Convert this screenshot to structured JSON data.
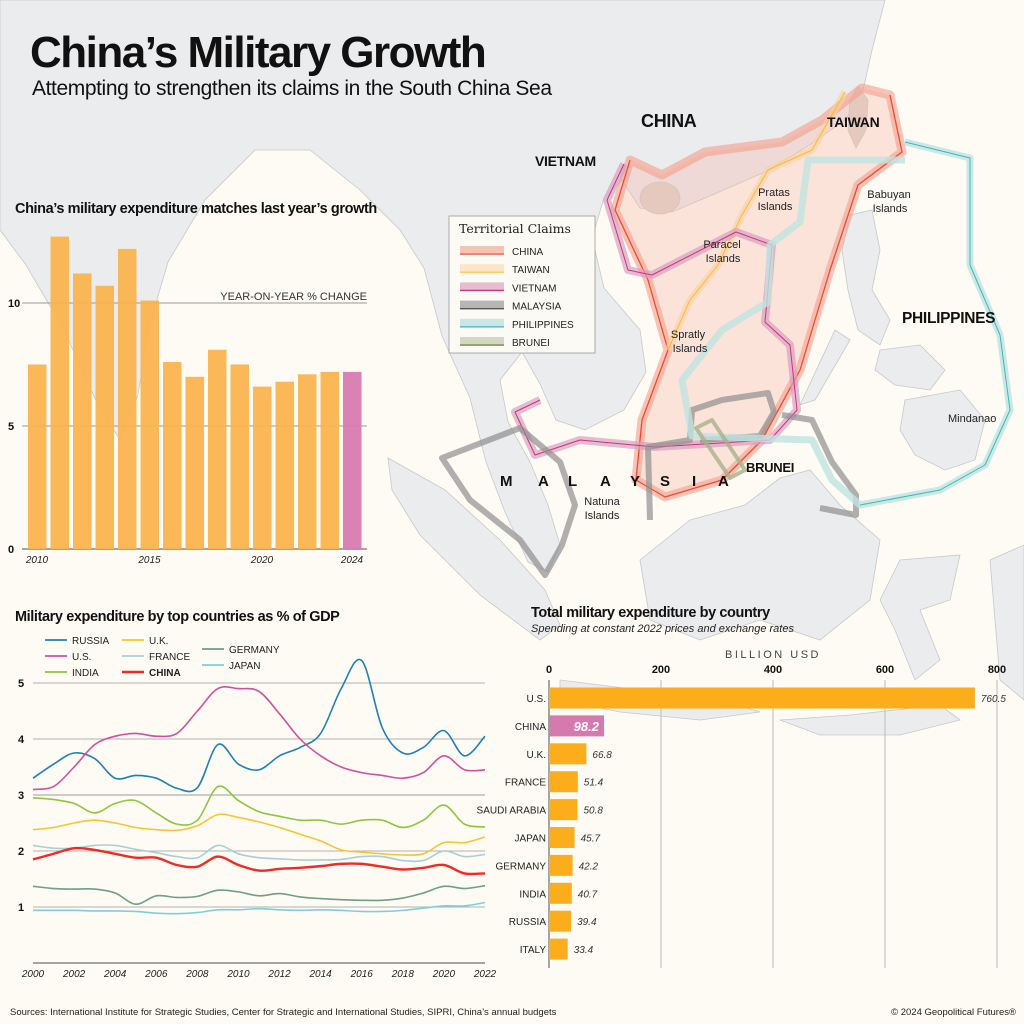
{
  "header": {
    "title": "China’s Military Growth",
    "subtitle": "Attempting to strengthen its claims in the South China Sea"
  },
  "map": {
    "labels": {
      "china": "CHINA",
      "taiwan": "TAIWAN",
      "vietnam": "VIETNAM",
      "philippines": "PHILIPPINES",
      "malaysia": [
        "M",
        "A",
        "L",
        "A",
        "Y",
        "S",
        "I",
        "A"
      ],
      "brunei": "BRUNEI",
      "pratas": [
        "Pratas",
        "Islands"
      ],
      "babuyan": [
        "Babuyan",
        "Islands"
      ],
      "paracel": [
        "Paracel",
        "Islands"
      ],
      "spratly": [
        "Spratly",
        "Islands"
      ],
      "natuna": [
        "Natuna",
        "Islands"
      ],
      "mindanao": "Mindanao"
    },
    "legend": {
      "title": "Territorial Claims",
      "items": [
        {
          "label": "CHINA",
          "color": "#ee5a45",
          "fill": "#f6b8a9"
        },
        {
          "label": "TAIWAN",
          "color": "#f9c04f",
          "fill": "#fde2bb"
        },
        {
          "label": "VIETNAM",
          "color": "#c9357f",
          "fill": "#e2b2c9"
        },
        {
          "label": "MALAYSIA",
          "color": "#555555",
          "fill": "#a9a9a9"
        },
        {
          "label": "PHILIPPINES",
          "color": "#3bb7bb",
          "fill": "#bfe3e1"
        },
        {
          "label": "BRUNEI",
          "color": "#6d8a3e",
          "fill": "#cfcfbc"
        }
      ]
    }
  },
  "chart_data": [
    {
      "type": "bar",
      "title": "China’s military expenditure matches last year’s growth",
      "ylabel": "YEAR-ON-YEAR % CHANGE",
      "categories": [
        "2010",
        "2011",
        "2012",
        "2013",
        "2014",
        "2015",
        "2016",
        "2017",
        "2018",
        "2019",
        "2020",
        "2021",
        "2022",
        "2023",
        "2024"
      ],
      "values": [
        7.5,
        12.7,
        11.2,
        10.7,
        12.2,
        10.1,
        7.6,
        7.0,
        8.1,
        7.5,
        6.6,
        6.8,
        7.1,
        7.2,
        7.2
      ],
      "highlight": "2024",
      "yticks": [
        "0",
        "5",
        "10"
      ],
      "xtick_labels": [
        "2010",
        "2015",
        "2020",
        "2024"
      ],
      "ylim": [
        0,
        13
      ],
      "grid": true,
      "colors": {
        "bar": "#fbb34c",
        "highlight": "#d57aae"
      }
    },
    {
      "type": "line",
      "title": "Military expenditure by top countries as % of GDP",
      "x": [
        2000,
        2001,
        2002,
        2003,
        2004,
        2005,
        2006,
        2007,
        2008,
        2009,
        2010,
        2011,
        2012,
        2013,
        2014,
        2015,
        2016,
        2017,
        2018,
        2019,
        2020,
        2021,
        2022
      ],
      "xtick_labels": [
        "2000",
        "2002",
        "2004",
        "2006",
        "2008",
        "2010",
        "2012",
        "2014",
        "2016",
        "2018",
        "2020",
        "2022"
      ],
      "yticks": [
        "1",
        "2",
        "3",
        "4",
        "5"
      ],
      "ylim": [
        0,
        5.5
      ],
      "grid": true,
      "legend_position": "top-left",
      "series": [
        {
          "name": "RUSSIA",
          "color": "#1f7fb8",
          "values": [
            3.3,
            3.55,
            3.75,
            3.65,
            3.3,
            3.35,
            3.3,
            3.12,
            3.13,
            3.9,
            3.55,
            3.45,
            3.7,
            3.85,
            4.1,
            4.9,
            5.4,
            4.2,
            3.75,
            3.85,
            4.15,
            3.7,
            4.05
          ]
        },
        {
          "name": "U.S.",
          "color": "#d2509b",
          "values": [
            3.1,
            3.15,
            3.5,
            3.9,
            4.05,
            4.1,
            4.05,
            4.1,
            4.5,
            4.9,
            4.9,
            4.85,
            4.45,
            4.0,
            3.7,
            3.5,
            3.4,
            3.35,
            3.3,
            3.4,
            3.7,
            3.45,
            3.45
          ]
        },
        {
          "name": "INDIA",
          "color": "#8ec63f",
          "values": [
            2.95,
            2.92,
            2.85,
            2.68,
            2.85,
            2.9,
            2.68,
            2.48,
            2.55,
            3.15,
            2.9,
            2.7,
            2.62,
            2.55,
            2.55,
            2.48,
            2.55,
            2.55,
            2.42,
            2.55,
            2.82,
            2.48,
            2.43
          ]
        },
        {
          "name": "U.K.",
          "color": "#f7c531",
          "values": [
            2.38,
            2.42,
            2.5,
            2.55,
            2.5,
            2.42,
            2.38,
            2.37,
            2.45,
            2.65,
            2.6,
            2.52,
            2.42,
            2.3,
            2.18,
            2.02,
            1.98,
            1.95,
            1.93,
            1.95,
            2.15,
            2.15,
            2.25
          ]
        },
        {
          "name": "FRANCE",
          "color": "#a9cfd4",
          "values": [
            2.1,
            2.05,
            2.05,
            2.1,
            2.1,
            2.03,
            1.97,
            1.9,
            1.88,
            2.1,
            1.95,
            1.88,
            1.86,
            1.84,
            1.84,
            1.85,
            1.9,
            1.9,
            1.83,
            1.83,
            2.0,
            1.9,
            1.94
          ]
        },
        {
          "name": "CHINA",
          "color": "#ee2b24",
          "values": [
            1.85,
            1.95,
            2.05,
            2.02,
            1.95,
            1.88,
            1.88,
            1.75,
            1.72,
            1.9,
            1.75,
            1.65,
            1.68,
            1.7,
            1.73,
            1.77,
            1.77,
            1.72,
            1.67,
            1.7,
            1.75,
            1.6,
            1.6
          ]
        },
        {
          "name": "GERMANY",
          "color": "#6f9f84",
          "values": [
            1.37,
            1.33,
            1.32,
            1.32,
            1.25,
            1.05,
            1.2,
            1.17,
            1.19,
            1.3,
            1.27,
            1.2,
            1.24,
            1.18,
            1.15,
            1.13,
            1.12,
            1.12,
            1.16,
            1.25,
            1.37,
            1.33,
            1.38
          ]
        },
        {
          "name": "JAPAN",
          "color": "#7fcfd8",
          "values": [
            0.94,
            0.94,
            0.94,
            0.93,
            0.93,
            0.92,
            0.89,
            0.88,
            0.9,
            0.95,
            0.95,
            0.97,
            0.95,
            0.94,
            0.95,
            0.94,
            0.92,
            0.92,
            0.94,
            0.98,
            1.02,
            1.02,
            1.08
          ]
        }
      ]
    },
    {
      "type": "bar",
      "orientation": "horizontal",
      "title": "Total military expenditure by country",
      "subtitle": "Spending at constant 2022 prices and exchange rates",
      "xlabel": "BILLION USD",
      "xticks": [
        "0",
        "200",
        "400",
        "600",
        "800"
      ],
      "xlim": [
        0,
        800
      ],
      "grid": true,
      "categories": [
        "U.S.",
        "CHINA",
        "U.K.",
        "FRANCE",
        "SAUDI ARABIA",
        "JAPAN",
        "GERMANY",
        "INDIA",
        "RUSSIA",
        "ITALY"
      ],
      "values": [
        760.5,
        98.2,
        66.8,
        51.4,
        50.8,
        45.7,
        42.2,
        40.7,
        39.4,
        33.4
      ],
      "value_labels": [
        "760.5",
        "98.2",
        "66.8",
        "51.4",
        "50.8",
        "45.7",
        "42.2",
        "40.7",
        "39.4",
        "33.4"
      ],
      "highlight": "CHINA",
      "colors": {
        "bar": "#fcad1c",
        "highlight": "#d57aae"
      }
    }
  ],
  "footer": {
    "sources": "Sources: International Institute for Strategic Studies, Center for Strategic and International Studies, SIPRI, China’s annual budgets",
    "copyright": "© 2024 Geopolitical Futures®"
  }
}
